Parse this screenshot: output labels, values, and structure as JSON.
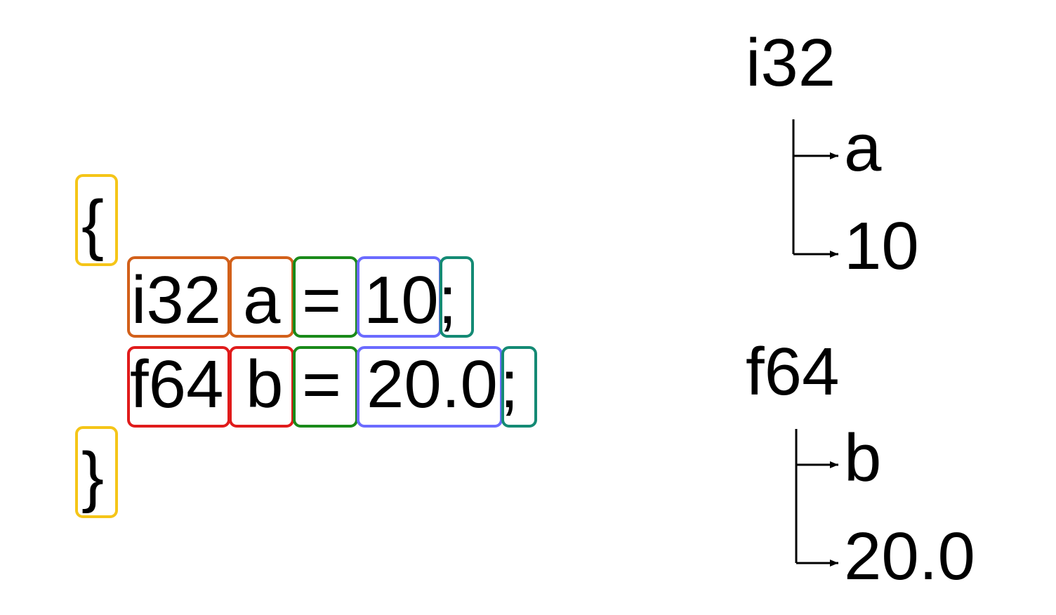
{
  "code": {
    "open_brace": "{",
    "close_brace": "}",
    "line1": {
      "type": "i32",
      "name": "a",
      "op": "=",
      "value": "10",
      "semi": ";"
    },
    "line2": {
      "type": "f64",
      "name": "b",
      "op": "=",
      "value": "20.0",
      "semi": ";"
    }
  },
  "tree": {
    "node1": {
      "type": "i32",
      "name": "a",
      "value": "10"
    },
    "node2": {
      "type": "f64",
      "name": "b",
      "value": "20.0"
    }
  },
  "colors": {
    "brace": "#F5C518",
    "type_i32": "#D2601A",
    "type_f64": "#E01B1B",
    "operator": "#1A8A1A",
    "literal": "#6B6BFF",
    "semicolon": "#148A74"
  }
}
